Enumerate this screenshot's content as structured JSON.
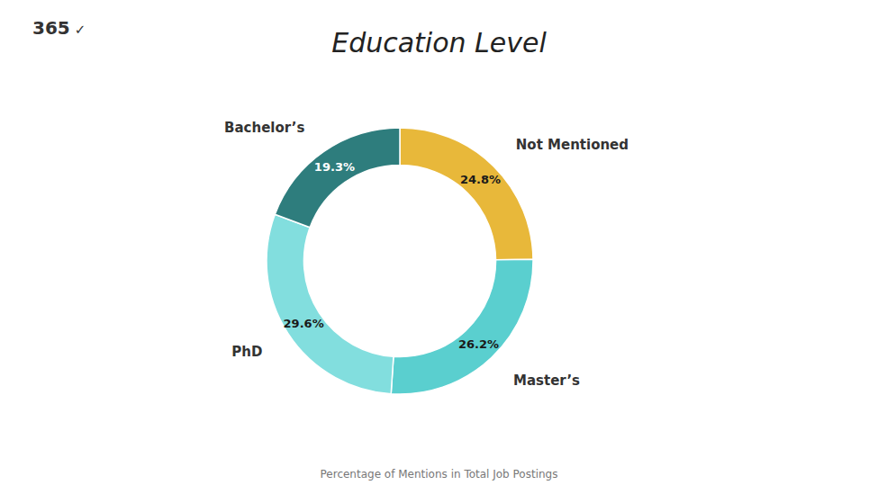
{
  "chart_data": {
    "type": "pie",
    "title": "Education Level",
    "subtitle": "Percentage of Mentions in Total Job Postings",
    "categories": [
      "Not Mentioned",
      "Master’s",
      "PhD",
      "Bachelor’s"
    ],
    "values": [
      24.8,
      26.2,
      29.6,
      19.3
    ],
    "value_labels": [
      "24.8%",
      "26.2%",
      "29.6%",
      "19.3%"
    ],
    "colors": [
      "#E8B83A",
      "#5ACFCF",
      "#82DEDE",
      "#2E7D7D"
    ],
    "data_labels": true,
    "annotations": [
      "365",
      "✓"
    ]
  }
}
